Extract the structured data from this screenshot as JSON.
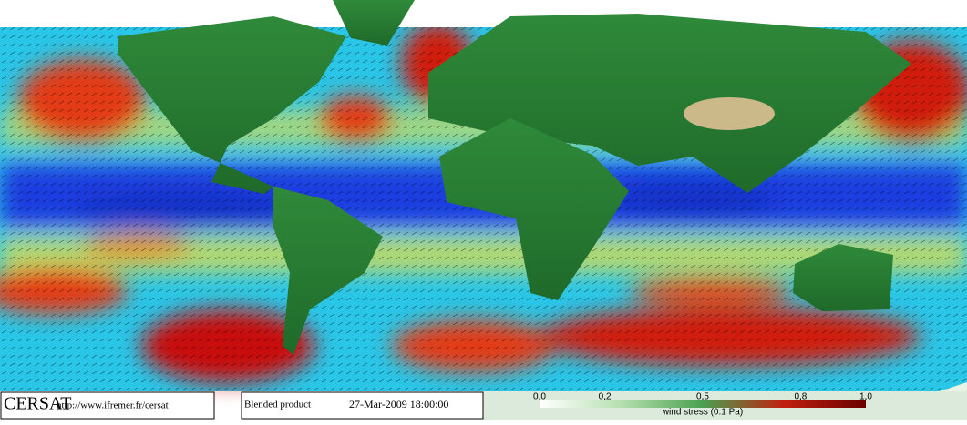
{
  "footer": {
    "logo": "CERSAT",
    "url": "http://www.ifremer.fr/cersat",
    "product": "Blended product",
    "date": "27-Mar-2009 18:00:00"
  },
  "colorbar": {
    "label": "wind stress (0.1 Pa)",
    "range": [
      0,
      1
    ],
    "ticks": [
      {
        "value": 0,
        "label": "0.0"
      },
      {
        "value": 0.2,
        "label": "0.2"
      },
      {
        "value": 0.5,
        "label": "0.5"
      },
      {
        "value": 0.8,
        "label": "0.8"
      },
      {
        "value": 1,
        "label": "1.0"
      }
    ]
  }
}
